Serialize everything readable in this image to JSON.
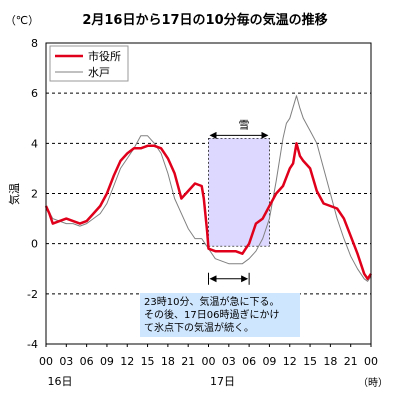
{
  "chart_data": {
    "type": "line",
    "title": "2月16日から17日の10分毎の気温の推移",
    "unit_label": "（℃）",
    "ylabel": "気温",
    "xlabel_unit": "（時）",
    "ylim": [
      -4,
      8
    ],
    "yticks": [
      -4,
      -2,
      0,
      2,
      4,
      6,
      8
    ],
    "xlim": [
      0,
      48
    ],
    "xtick_positions": [
      0,
      3,
      6,
      9,
      12,
      15,
      18,
      21,
      24,
      27,
      30,
      33,
      36,
      39,
      42,
      45,
      48
    ],
    "xtick_labels": [
      "00",
      "03",
      "06",
      "09",
      "12",
      "15",
      "18",
      "21",
      "00",
      "03",
      "06",
      "09",
      "12",
      "15",
      "18",
      "21",
      "00"
    ],
    "day_labels": [
      {
        "x": 0,
        "label": "16日"
      },
      {
        "x": 24,
        "label": "17日"
      }
    ],
    "grid": "dashed horizontal at 2℃ intervals",
    "legend_position": "top-left",
    "series": [
      {
        "name": "市役所",
        "color": "#e0001b",
        "points": [
          [
            0,
            1.5
          ],
          [
            0.5,
            1.2
          ],
          [
            1,
            0.8
          ],
          [
            2,
            0.9
          ],
          [
            3,
            1.0
          ],
          [
            4,
            0.9
          ],
          [
            5,
            0.8
          ],
          [
            6,
            0.9
          ],
          [
            7,
            1.2
          ],
          [
            8,
            1.5
          ],
          [
            9,
            2.0
          ],
          [
            10,
            2.7
          ],
          [
            11,
            3.3
          ],
          [
            12,
            3.6
          ],
          [
            13,
            3.8
          ],
          [
            14,
            3.8
          ],
          [
            15,
            3.9
          ],
          [
            16,
            3.9
          ],
          [
            17,
            3.8
          ],
          [
            18,
            3.4
          ],
          [
            19,
            2.8
          ],
          [
            20,
            1.8
          ],
          [
            21,
            2.1
          ],
          [
            22,
            2.4
          ],
          [
            23,
            2.3
          ],
          [
            23.3,
            1.8
          ],
          [
            23.8,
            0.5
          ],
          [
            24,
            -0.2
          ],
          [
            25,
            -0.3
          ],
          [
            26,
            -0.3
          ],
          [
            27,
            -0.3
          ],
          [
            28,
            -0.3
          ],
          [
            29,
            -0.4
          ],
          [
            29.5,
            -0.2
          ],
          [
            30,
            0.0
          ],
          [
            31,
            0.8
          ],
          [
            32,
            1.0
          ],
          [
            33,
            1.5
          ],
          [
            34,
            2.0
          ],
          [
            35,
            2.3
          ],
          [
            36,
            3.0
          ],
          [
            36.5,
            3.2
          ],
          [
            37,
            4.0
          ],
          [
            37.5,
            3.5
          ],
          [
            38,
            3.3
          ],
          [
            39,
            3.0
          ],
          [
            40,
            2.1
          ],
          [
            41,
            1.6
          ],
          [
            42,
            1.5
          ],
          [
            43,
            1.4
          ],
          [
            44,
            1.0
          ],
          [
            45,
            0.3
          ],
          [
            46,
            -0.4
          ],
          [
            47,
            -1.2
          ],
          [
            47.5,
            -1.4
          ],
          [
            48,
            -1.2
          ]
        ]
      },
      {
        "name": "水戸",
        "color": "#808080",
        "points": [
          [
            0,
            1.5
          ],
          [
            1,
            1.0
          ],
          [
            2,
            0.9
          ],
          [
            3,
            0.8
          ],
          [
            4,
            0.8
          ],
          [
            5,
            0.7
          ],
          [
            6,
            0.8
          ],
          [
            7,
            1.0
          ],
          [
            8,
            1.2
          ],
          [
            9,
            1.6
          ],
          [
            10,
            2.3
          ],
          [
            11,
            3.0
          ],
          [
            12,
            3.4
          ],
          [
            13,
            3.8
          ],
          [
            14,
            4.3
          ],
          [
            15,
            4.3
          ],
          [
            16,
            4.0
          ],
          [
            17,
            3.6
          ],
          [
            18,
            2.8
          ],
          [
            19,
            1.8
          ],
          [
            20,
            1.2
          ],
          [
            21,
            0.6
          ],
          [
            22,
            0.2
          ],
          [
            23,
            0.2
          ],
          [
            24,
            -0.2
          ],
          [
            25,
            -0.6
          ],
          [
            26,
            -0.7
          ],
          [
            27,
            -0.8
          ],
          [
            28,
            -0.8
          ],
          [
            29,
            -0.8
          ],
          [
            30,
            -0.6
          ],
          [
            31,
            -0.3
          ],
          [
            32,
            0.2
          ],
          [
            33,
            1.0
          ],
          [
            34,
            2.5
          ],
          [
            35,
            4.2
          ],
          [
            35.5,
            4.8
          ],
          [
            36,
            5.0
          ],
          [
            37,
            5.9
          ],
          [
            37.5,
            5.4
          ],
          [
            38,
            5.0
          ],
          [
            39,
            4.5
          ],
          [
            40,
            4.0
          ],
          [
            41,
            3.0
          ],
          [
            42,
            2.0
          ],
          [
            43,
            1.0
          ],
          [
            44,
            0.2
          ],
          [
            45,
            -0.5
          ],
          [
            46,
            -1.0
          ],
          [
            47,
            -1.4
          ],
          [
            47.5,
            -1.5
          ],
          [
            48,
            -1.3
          ]
        ]
      }
    ],
    "snow_period": {
      "label": "雪",
      "start": 24,
      "end": 33,
      "ymin": -0.1,
      "ymax": 4.2
    },
    "cold_period": {
      "start": 24,
      "end": 30,
      "y": -1.4
    },
    "annotation": {
      "lines": [
        "23時10分、気温が急に下る。",
        "その後、17日06時過ぎにかけ",
        "て氷点下の気温が続く。"
      ]
    }
  }
}
